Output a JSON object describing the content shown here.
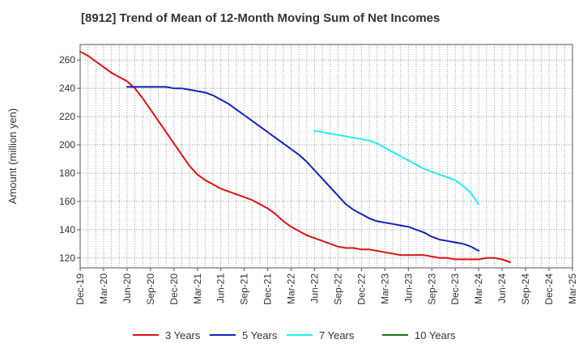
{
  "chart_data": {
    "type": "line",
    "title": "[8912]  Trend of Mean of 12-Month Moving Sum of Net Incomes",
    "ylabel": "Amount (million yen)",
    "xlabel": "",
    "ylim": [
      113,
      271
    ],
    "yticks": [
      120,
      140,
      160,
      180,
      200,
      220,
      240,
      260
    ],
    "x_ticks": [
      "Dec-19",
      "Mar-20",
      "Jun-20",
      "Sep-20",
      "Dec-20",
      "Mar-21",
      "Jun-21",
      "Sep-21",
      "Dec-21",
      "Mar-22",
      "Jun-22",
      "Sep-22",
      "Dec-22",
      "Mar-23",
      "Jun-23",
      "Sep-23",
      "Dec-23",
      "Mar-24",
      "Jun-24",
      "Sep-24",
      "Dec-24",
      "Mar-25"
    ],
    "grid": true,
    "legend_position": "bottom",
    "series": [
      {
        "name": "3 Years",
        "color": "#dd1111",
        "points": [
          [
            "Dec-19",
            266
          ],
          [
            "Jan-20",
            263
          ],
          [
            "Feb-20",
            259
          ],
          [
            "Mar-20",
            255
          ],
          [
            "Apr-20",
            251
          ],
          [
            "May-20",
            248
          ],
          [
            "Jun-20",
            245
          ],
          [
            "Jul-20",
            240
          ],
          [
            "Aug-20",
            233
          ],
          [
            "Sep-20",
            225
          ],
          [
            "Oct-20",
            217
          ],
          [
            "Nov-20",
            209
          ],
          [
            "Dec-20",
            201
          ],
          [
            "Jan-21",
            193
          ],
          [
            "Feb-21",
            185
          ],
          [
            "Mar-21",
            179
          ],
          [
            "Apr-21",
            175
          ],
          [
            "May-21",
            172
          ],
          [
            "Jun-21",
            169
          ],
          [
            "Jul-21",
            167
          ],
          [
            "Aug-21",
            165
          ],
          [
            "Sep-21",
            163
          ],
          [
            "Oct-21",
            161
          ],
          [
            "Nov-21",
            158
          ],
          [
            "Dec-21",
            155
          ],
          [
            "Jan-22",
            151
          ],
          [
            "Feb-22",
            146
          ],
          [
            "Mar-22",
            142
          ],
          [
            "Apr-22",
            139
          ],
          [
            "May-22",
            136
          ],
          [
            "Jun-22",
            134
          ],
          [
            "Jul-22",
            132
          ],
          [
            "Aug-22",
            130
          ],
          [
            "Sep-22",
            128
          ],
          [
            "Oct-22",
            127
          ],
          [
            "Nov-22",
            127
          ],
          [
            "Dec-22",
            126
          ],
          [
            "Jan-23",
            126
          ],
          [
            "Feb-23",
            125
          ],
          [
            "Mar-23",
            124
          ],
          [
            "Apr-23",
            123
          ],
          [
            "May-23",
            122
          ],
          [
            "Jun-23",
            122
          ],
          [
            "Jul-23",
            122
          ],
          [
            "Aug-23",
            122
          ],
          [
            "Sep-23",
            121
          ],
          [
            "Oct-23",
            120
          ],
          [
            "Nov-23",
            120
          ],
          [
            "Dec-23",
            119
          ],
          [
            "Jan-24",
            119
          ],
          [
            "Feb-24",
            119
          ],
          [
            "Mar-24",
            119
          ],
          [
            "Apr-24",
            120
          ],
          [
            "May-24",
            120
          ],
          [
            "Jun-24",
            119
          ],
          [
            "Jul-24",
            117
          ]
        ]
      },
      {
        "name": "5 Years",
        "color": "#1122bb",
        "points": [
          [
            "Jun-20",
            241
          ],
          [
            "Jul-20",
            241
          ],
          [
            "Aug-20",
            241
          ],
          [
            "Sep-20",
            241
          ],
          [
            "Oct-20",
            241
          ],
          [
            "Nov-20",
            241
          ],
          [
            "Dec-20",
            240
          ],
          [
            "Jan-21",
            240
          ],
          [
            "Feb-21",
            239
          ],
          [
            "Mar-21",
            238
          ],
          [
            "Apr-21",
            237
          ],
          [
            "May-21",
            235
          ],
          [
            "Jun-21",
            232
          ],
          [
            "Jul-21",
            229
          ],
          [
            "Aug-21",
            225
          ],
          [
            "Sep-21",
            221
          ],
          [
            "Oct-21",
            217
          ],
          [
            "Nov-21",
            213
          ],
          [
            "Dec-21",
            209
          ],
          [
            "Jan-22",
            205
          ],
          [
            "Feb-22",
            201
          ],
          [
            "Mar-22",
            197
          ],
          [
            "Apr-22",
            193
          ],
          [
            "May-22",
            188
          ],
          [
            "Jun-22",
            182
          ],
          [
            "Jul-22",
            176
          ],
          [
            "Aug-22",
            170
          ],
          [
            "Sep-22",
            164
          ],
          [
            "Oct-22",
            158
          ],
          [
            "Nov-22",
            154
          ],
          [
            "Dec-22",
            151
          ],
          [
            "Jan-23",
            148
          ],
          [
            "Feb-23",
            146
          ],
          [
            "Mar-23",
            145
          ],
          [
            "Apr-23",
            144
          ],
          [
            "May-23",
            143
          ],
          [
            "Jun-23",
            142
          ],
          [
            "Jul-23",
            140
          ],
          [
            "Aug-23",
            138
          ],
          [
            "Sep-23",
            135
          ],
          [
            "Oct-23",
            133
          ],
          [
            "Nov-23",
            132
          ],
          [
            "Dec-23",
            131
          ],
          [
            "Jan-24",
            130
          ],
          [
            "Feb-24",
            128
          ],
          [
            "Mar-24",
            125
          ]
        ]
      },
      {
        "name": "7 Years",
        "color": "#22eeee",
        "points": [
          [
            "Jun-22",
            210
          ],
          [
            "Jul-22",
            209
          ],
          [
            "Aug-22",
            208
          ],
          [
            "Sep-22",
            207
          ],
          [
            "Oct-22",
            206
          ],
          [
            "Nov-22",
            205
          ],
          [
            "Dec-22",
            204
          ],
          [
            "Jan-23",
            203
          ],
          [
            "Feb-23",
            201
          ],
          [
            "Mar-23",
            198
          ],
          [
            "Apr-23",
            195
          ],
          [
            "May-23",
            192
          ],
          [
            "Jun-23",
            189
          ],
          [
            "Jul-23",
            186
          ],
          [
            "Aug-23",
            183
          ],
          [
            "Sep-23",
            181
          ],
          [
            "Oct-23",
            179
          ],
          [
            "Nov-23",
            177
          ],
          [
            "Dec-23",
            175
          ],
          [
            "Jan-24",
            171
          ],
          [
            "Feb-24",
            166
          ],
          [
            "Mar-24",
            158
          ]
        ]
      },
      {
        "name": "10 Years",
        "color": "#117711",
        "points": []
      }
    ]
  }
}
